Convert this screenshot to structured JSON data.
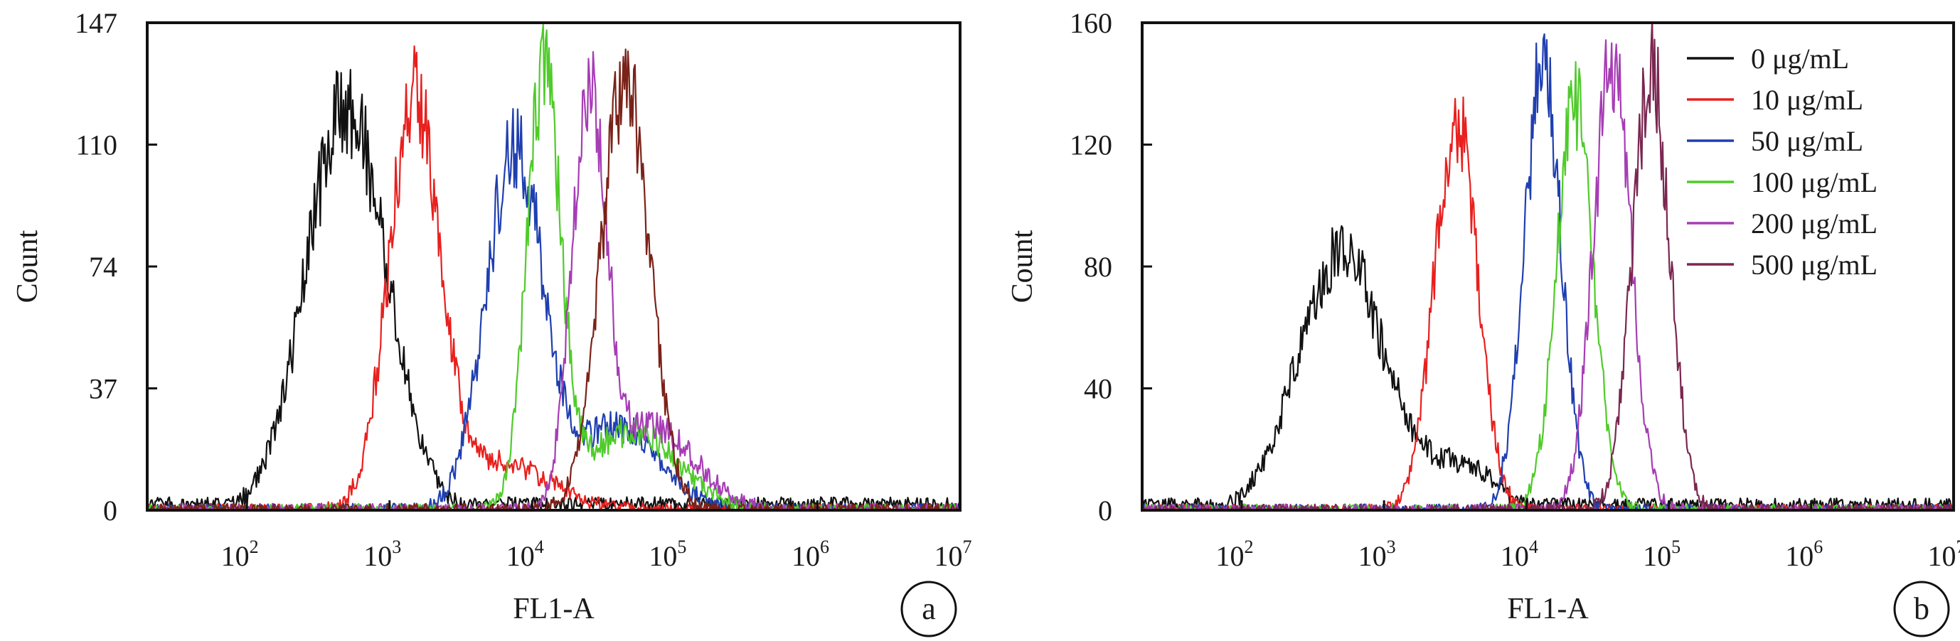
{
  "chart_data": [
    {
      "type": "line",
      "panel_label": "a",
      "xlabel": "FL1-A",
      "ylabel": "Count",
      "x_scale": "log",
      "xlim": [
        20,
        10000000
      ],
      "ylim": [
        0,
        147
      ],
      "x_ticks": [
        {
          "base": "10",
          "exp": "2",
          "value": 100
        },
        {
          "base": "10",
          "exp": "3",
          "value": 1000
        },
        {
          "base": "10",
          "exp": "4",
          "value": 10000
        },
        {
          "base": "10",
          "exp": "5",
          "value": 100000
        },
        {
          "base": "10",
          "exp": "6",
          "value": 1000000
        },
        {
          "base": "10",
          "exp": "7",
          "value": 10000000
        }
      ],
      "y_ticks": [
        "0",
        "37",
        "74",
        "110",
        "147"
      ],
      "legend": false,
      "series": [
        {
          "dose": "0 µg/mL",
          "color": "#111111",
          "peaks": [
            {
              "x": 500,
              "y": 122,
              "w": 0.28
            }
          ],
          "noise_floor": 4
        },
        {
          "dose": "10 µg/mL",
          "color": "#e8201e",
          "peaks": [
            {
              "x": 1500,
              "y": 122,
              "w": 0.18
            },
            {
              "x": 6000,
              "y": 14,
              "w": 0.35
            }
          ]
        },
        {
          "dose": "50 µg/mL",
          "color": "#1f3fb0",
          "peaks": [
            {
              "x": 7500,
              "y": 108,
              "w": 0.2
            },
            {
              "x": 40000,
              "y": 25,
              "w": 0.3
            }
          ]
        },
        {
          "dose": "100 µg/mL",
          "color": "#4fcb2a",
          "peaks": [
            {
              "x": 12000,
              "y": 128,
              "w": 0.12
            },
            {
              "x": 50000,
              "y": 24,
              "w": 0.32
            }
          ]
        },
        {
          "dose": "200 µg/mL",
          "color": "#a63db5",
          "peaks": [
            {
              "x": 25000,
              "y": 118,
              "w": 0.12
            },
            {
              "x": 70000,
              "y": 25,
              "w": 0.3
            }
          ]
        },
        {
          "dose": "500 µg/mL",
          "color": "#7a2218",
          "peaks": [
            {
              "x": 45000,
              "y": 130,
              "w": 0.17
            }
          ]
        }
      ]
    },
    {
      "type": "line",
      "panel_label": "b",
      "xlabel": "FL1-A",
      "ylabel": "Count",
      "x_scale": "log",
      "xlim": [
        20,
        10000000
      ],
      "ylim": [
        0,
        160
      ],
      "x_ticks": [
        {
          "base": "10",
          "exp": "2",
          "value": 100
        },
        {
          "base": "10",
          "exp": "3",
          "value": 1000
        },
        {
          "base": "10",
          "exp": "4",
          "value": 10000
        },
        {
          "base": "10",
          "exp": "5",
          "value": 100000
        },
        {
          "base": "10",
          "exp": "6",
          "value": 1000000
        },
        {
          "base": "10",
          "exp": "7",
          "value": 10000000
        }
      ],
      "y_ticks": [
        "0",
        "40",
        "80",
        "120",
        "160"
      ],
      "legend": true,
      "legend_position": "top-right",
      "series": [
        {
          "name": "0 μg/mL",
          "color": "#111111",
          "peaks": [
            {
              "x": 500,
              "y": 85,
              "w": 0.3
            },
            {
              "x": 3500,
              "y": 14,
              "w": 0.25
            }
          ],
          "noise_floor": 4
        },
        {
          "name": "10 μg/mL",
          "color": "#e8201e",
          "peaks": [
            {
              "x": 3200,
              "y": 128,
              "w": 0.15
            }
          ]
        },
        {
          "name": "50 μg/mL",
          "color": "#1f3fb0",
          "peaks": [
            {
              "x": 13000,
              "y": 145,
              "w": 0.13
            }
          ]
        },
        {
          "name": "100 μg/mL",
          "color": "#4fcb2a",
          "peaks": [
            {
              "x": 22000,
              "y": 132,
              "w": 0.13
            }
          ]
        },
        {
          "name": "200 μg/mL",
          "color": "#a63db5",
          "peaks": [
            {
              "x": 40000,
              "y": 148,
              "w": 0.13
            }
          ]
        },
        {
          "name": "500 μg/mL",
          "color": "#7a2750",
          "peaks": [
            {
              "x": 75000,
              "y": 145,
              "w": 0.13
            }
          ]
        }
      ]
    }
  ]
}
